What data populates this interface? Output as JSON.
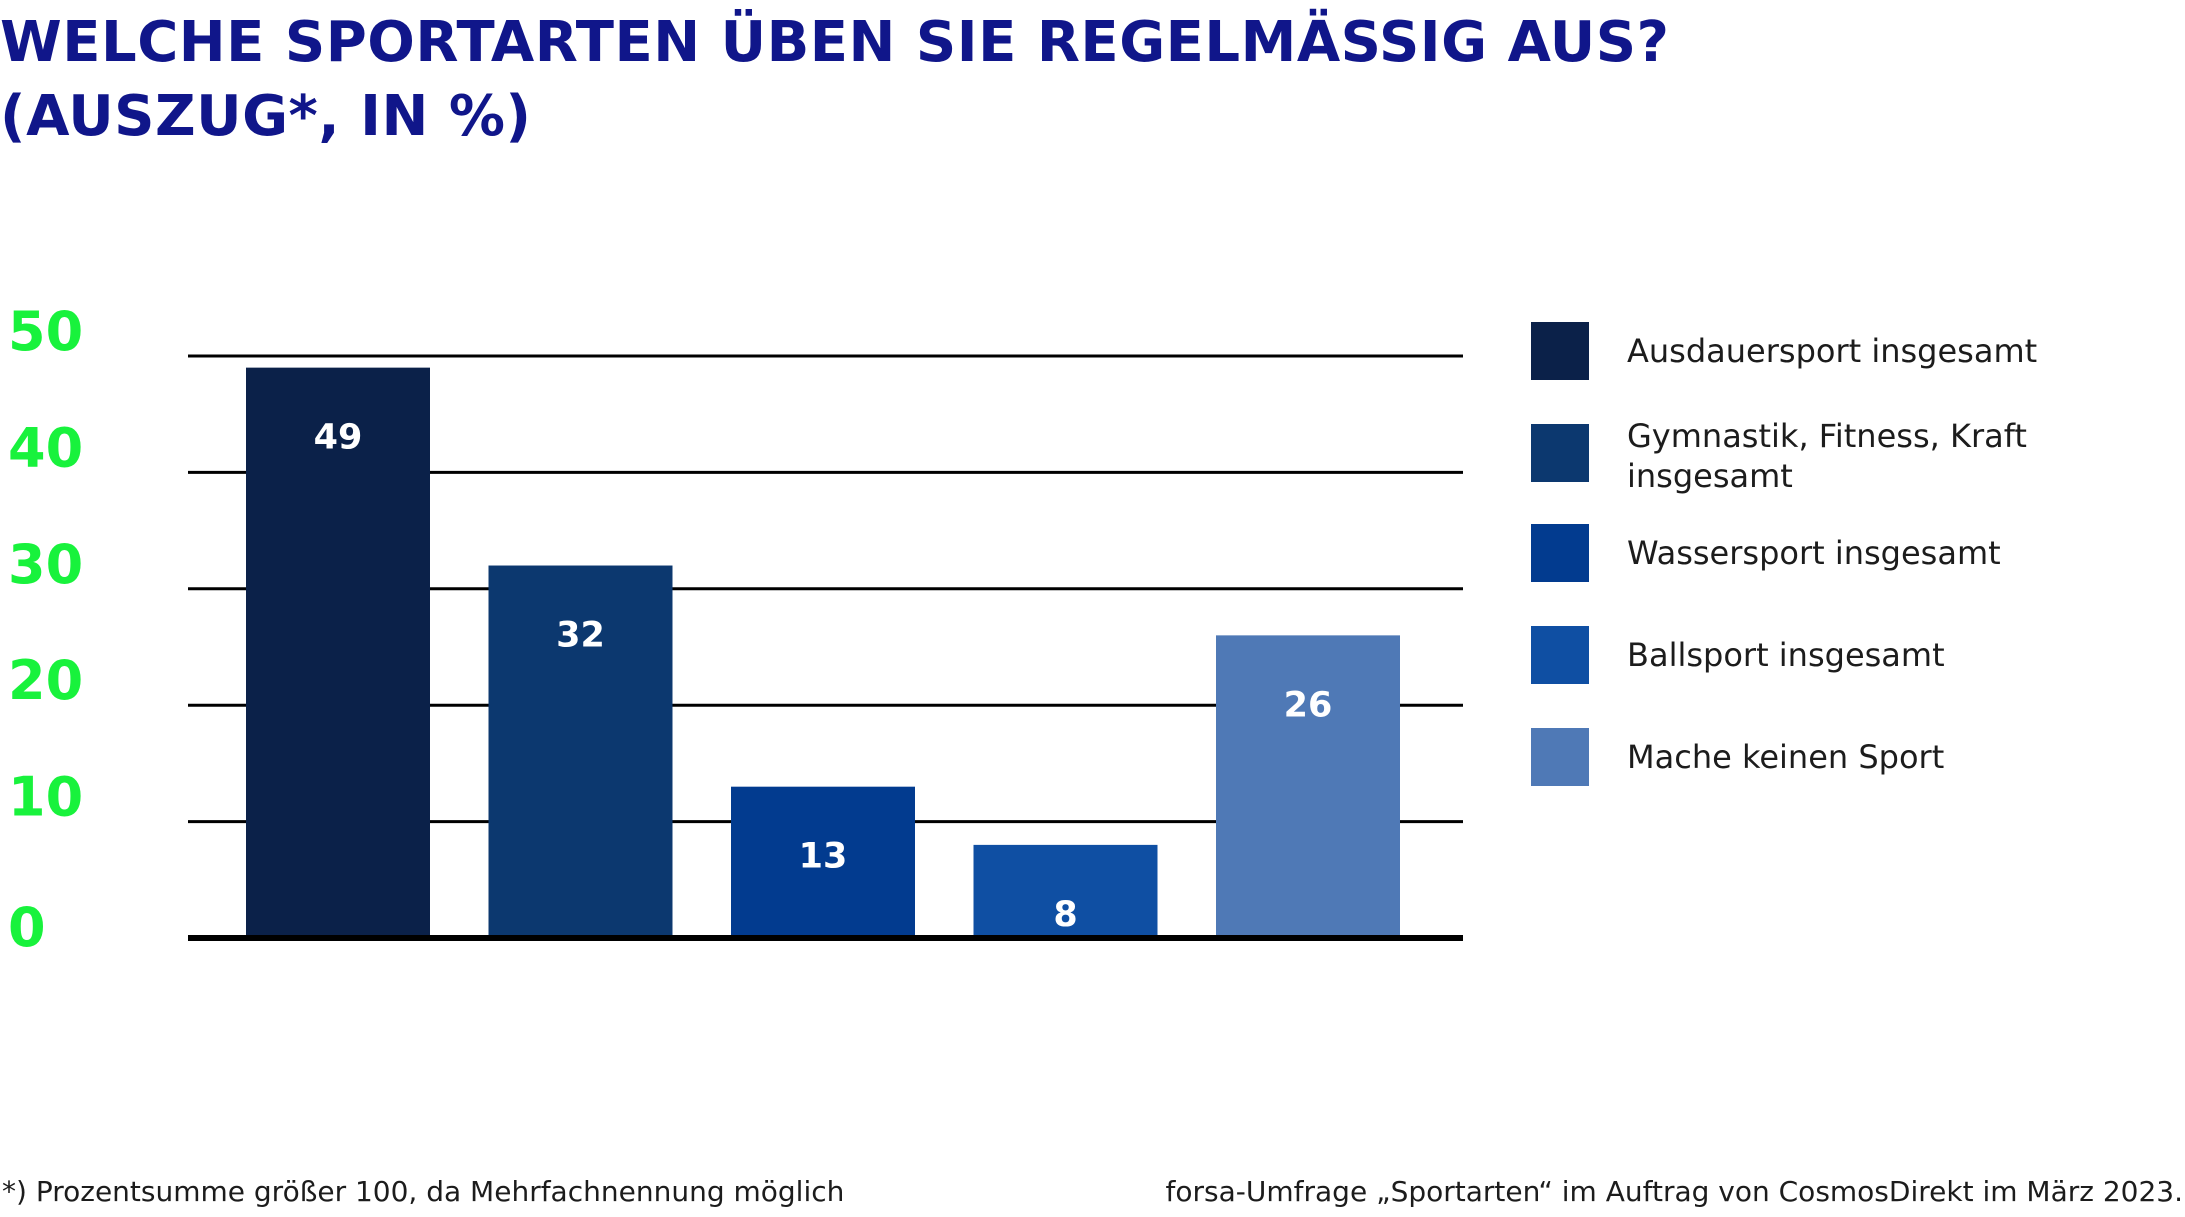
{
  "chart_data": {
    "type": "bar",
    "title_lines": [
      "WELCHE SPORTARTEN ÜBEN SIE REGELMÄSSIG AUS?",
      "(AUSZUG*, IN %)"
    ],
    "categories": [
      "Ausdauersport insgesamt",
      "Gymnastik, Fitness, Kraft insgesamt",
      "Wassersport insgesamt",
      "Ballsport insgesamt",
      "Mache keinen Sport"
    ],
    "legend_lines": [
      [
        "Ausdauersport insgesamt"
      ],
      [
        "Gymnastik, Fitness, Kraft",
        "insgesamt"
      ],
      [
        "Wassersport insgesamt"
      ],
      [
        "Ballsport insgesamt"
      ],
      [
        "Mache keinen Sport"
      ]
    ],
    "values": [
      49,
      32,
      13,
      8,
      26
    ],
    "colors": [
      "#0b2149",
      "#0c386f",
      "#023b8f",
      "#0f4fa3",
      "#4f79b6"
    ],
    "ylim": [
      0,
      50
    ],
    "yticks": [
      0,
      10,
      20,
      30,
      40,
      50
    ],
    "ytick_color": "#18f23c",
    "grid": true,
    "legend_position": "right"
  },
  "footnotes": {
    "left": "*) Prozentsumme größer 100, da Mehrfachnennung möglich",
    "right": "forsa-Umfrage „Sportarten“ im Auftrag von CosmosDirekt im März 2023."
  }
}
